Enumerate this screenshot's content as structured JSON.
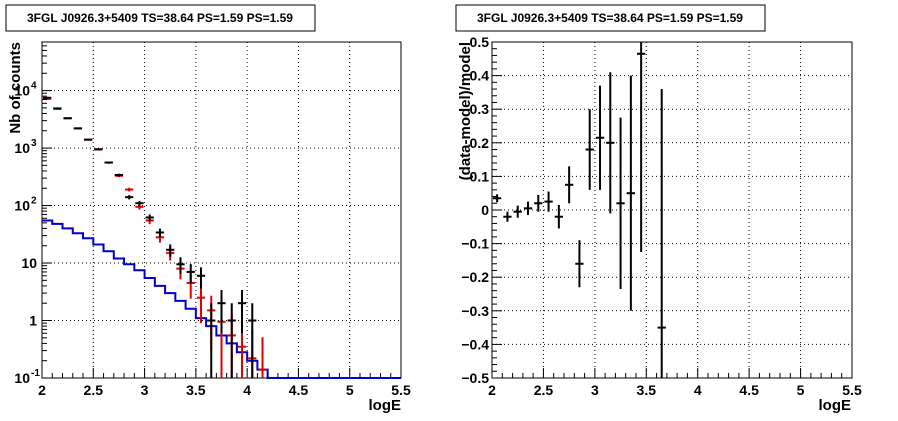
{
  "chart_data": [
    {
      "type": "scatter",
      "title": "3FGL J0926.3+5409 TS=38.64 PS=1.59 PS=1.59",
      "xlabel": "logE",
      "ylabel": "Nb of counts",
      "xlim": [
        2,
        5.5
      ],
      "ylim": [
        0.1,
        70000
      ],
      "yscale": "log",
      "grid": true,
      "x_ticks": [
        "2",
        "2.5",
        "3",
        "3.5",
        "4",
        "4.5",
        "5",
        "5.5"
      ],
      "y_ticks": [
        {
          "value": 0.1,
          "label": "10",
          "exp": "-1"
        },
        {
          "value": 1,
          "label": "1",
          "exp": ""
        },
        {
          "value": 10,
          "label": "10",
          "exp": ""
        },
        {
          "value": 100,
          "label": "10",
          "exp": "2"
        },
        {
          "value": 1000,
          "label": "10",
          "exp": "3"
        },
        {
          "value": 10000,
          "label": "10",
          "exp": "4"
        }
      ],
      "series": [
        {
          "color": "#0000cc",
          "style": "step",
          "bin_width": 0.1,
          "x": [
            2.05,
            2.15,
            2.25,
            2.35,
            2.45,
            2.55,
            2.65,
            2.75,
            2.85,
            2.95,
            3.05,
            3.15,
            3.25,
            3.35,
            3.45,
            3.55,
            3.65,
            3.75,
            3.85,
            3.95,
            4.05,
            4.15,
            4.25,
            4.35,
            4.45,
            4.55,
            4.65,
            4.75,
            4.85,
            4.95,
            5.05,
            5.15,
            5.25,
            5.35,
            5.45
          ],
          "y": [
            55,
            48,
            40,
            33,
            27,
            21,
            16,
            12,
            9.5,
            7.5,
            5.5,
            4,
            3,
            2.2,
            1.6,
            1.1,
            0.8,
            0.55,
            0.4,
            0.28,
            0.2,
            0.14,
            0.1,
            0.1,
            0.1,
            0.1,
            0.1,
            0.1,
            0.1,
            0.1,
            0.1,
            0.1,
            0.1,
            0.1,
            0.1
          ]
        },
        {
          "color": "#e00000",
          "style": "errorbar",
          "bin_width": 0.1,
          "x": [
            2.05,
            2.15,
            2.25,
            2.35,
            2.45,
            2.55,
            2.65,
            2.75,
            2.85,
            2.95,
            3.05,
            3.15,
            3.25,
            3.35,
            3.45,
            3.55,
            3.65,
            3.75,
            3.85,
            3.95,
            4.05,
            4.15
          ],
          "y": [
            7200,
            4800,
            3300,
            2200,
            1400,
            950,
            560,
            330,
            190,
            95,
            55,
            28,
            15,
            8,
            4.5,
            2.5,
            1.5,
            0.95,
            0.55,
            0.35,
            0.22,
            0.14
          ],
          "yerr": [
            85,
            70,
            58,
            47,
            37,
            31,
            24,
            18,
            14,
            10,
            7.5,
            5.3,
            3.9,
            2.8,
            2.1,
            1.6,
            1.2,
            0.97,
            0.75,
            0.6,
            0.47,
            0.37
          ]
        },
        {
          "color": "#000000",
          "style": "errorbar",
          "bin_width": 0.1,
          "x": [
            2.05,
            2.15,
            2.25,
            2.35,
            2.45,
            2.55,
            2.65,
            2.75,
            2.85,
            2.95,
            3.05,
            3.15,
            3.25,
            3.35,
            3.45,
            3.55,
            3.65,
            3.75,
            3.85,
            3.95,
            4.05
          ],
          "y": [
            7500,
            4900,
            3300,
            2200,
            1400,
            950,
            560,
            340,
            140,
            110,
            62,
            34,
            17,
            9.5,
            7,
            6,
            1,
            2,
            1,
            2,
            1
          ],
          "yerr": [
            87,
            70,
            57,
            47,
            37,
            31,
            24,
            18,
            12,
            10,
            7.9,
            5.8,
            4.1,
            3.1,
            2.6,
            2.4,
            1,
            1.4,
            1,
            1.4,
            1
          ]
        }
      ]
    },
    {
      "type": "scatter",
      "title": "3FGL J0926.3+5409 TS=38.64 PS=1.59 PS=1.59",
      "xlabel": "logE",
      "ylabel": "(data-model)/model",
      "xlim": [
        2,
        5.5
      ],
      "ylim": [
        -0.5,
        0.5
      ],
      "grid": true,
      "x_ticks": [
        "2",
        "2.5",
        "3",
        "3.5",
        "4",
        "4.5",
        "5",
        "5.5"
      ],
      "y_ticks": [
        "-0.5",
        "-0.4",
        "-0.3",
        "-0.2",
        "-0.1",
        "0",
        "0.1",
        "0.2",
        "0.3",
        "0.4",
        "0.5"
      ],
      "series": [
        {
          "color": "#000000",
          "style": "errorbar",
          "bin_width": 0.1,
          "x": [
            2.05,
            2.15,
            2.25,
            2.35,
            2.45,
            2.55,
            2.65,
            2.75,
            2.85,
            2.95,
            3.05,
            3.15,
            3.25,
            3.35,
            3.45,
            3.65
          ],
          "y": [
            0.035,
            -0.02,
            -0.005,
            0.005,
            0.02,
            0.025,
            -0.02,
            0.075,
            -0.16,
            0.18,
            0.215,
            0.2,
            0.02,
            0.05,
            0.465,
            -0.35
          ],
          "yerr": [
            0.012,
            0.015,
            0.018,
            0.02,
            0.025,
            0.03,
            0.035,
            0.055,
            0.07,
            0.12,
            0.155,
            0.21,
            0.255,
            0.35,
            0.59,
            0.71
          ]
        }
      ]
    }
  ]
}
